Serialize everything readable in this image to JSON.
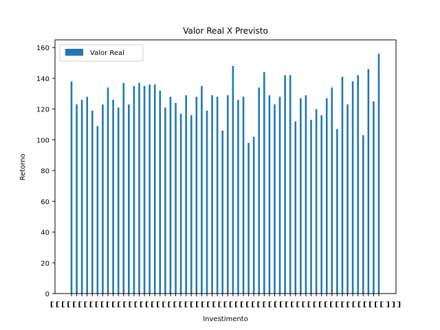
{
  "chart_data": {
    "type": "bar",
    "title": "Valor Real X Previsto",
    "xlabel": "Investimento",
    "ylabel": "Retorno",
    "ylim": [
      0,
      165
    ],
    "yticks": [
      0,
      20,
      40,
      60,
      80,
      100,
      120,
      140,
      160
    ],
    "legend": {
      "position": "top-left",
      "entries": [
        "Valor Real"
      ]
    },
    "series": [
      {
        "name": "Valor Real",
        "color": "#1f77b4",
        "values": [
          138,
          123,
          126,
          128,
          119,
          109,
          123,
          134,
          126,
          121,
          137,
          123,
          135,
          137,
          135,
          136,
          136,
          132,
          121,
          128,
          124,
          117,
          129,
          116,
          128,
          135,
          119,
          129,
          128,
          106,
          129,
          148,
          126,
          128,
          98,
          102,
          134,
          144,
          129,
          123,
          128,
          142,
          142,
          112,
          127,
          129,
          113,
          120,
          116,
          127,
          134,
          107,
          141,
          123,
          138,
          142,
          103,
          146,
          125,
          156
        ]
      }
    ],
    "xtick_labels_note": "overlapping unreadable tick labels rendered as bracket glyphs"
  }
}
